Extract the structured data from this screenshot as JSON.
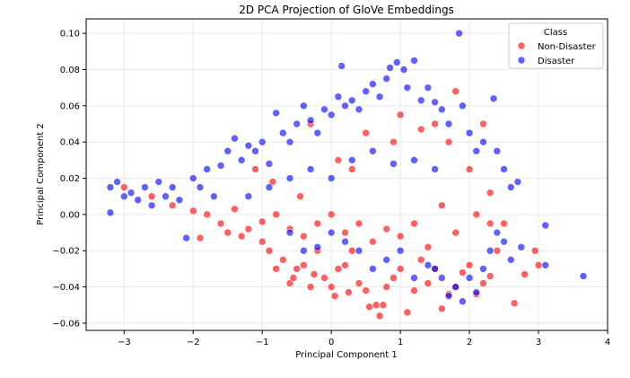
{
  "chart_data": {
    "type": "scatter",
    "title": "2D PCA Projection of GloVe Embeddings",
    "xlabel": "Principal Component 1",
    "ylabel": "Principal Component 2",
    "xlim": [
      -3.55,
      4.0
    ],
    "ylim": [
      -0.064,
      0.108
    ],
    "xticks": [
      -3,
      -2,
      -1,
      0,
      1,
      2,
      3,
      4
    ],
    "xtick_labels": [
      "−3",
      "−2",
      "−1",
      "0",
      "1",
      "2",
      "3",
      "4"
    ],
    "yticks": [
      -0.06,
      -0.04,
      -0.02,
      0.0,
      0.02,
      0.04,
      0.06,
      0.08,
      0.1
    ],
    "ytick_labels": [
      "−0.06",
      "−0.04",
      "−0.02",
      "0.00",
      "0.02",
      "0.04",
      "0.06",
      "0.08",
      "0.10"
    ],
    "grid": true,
    "legend": {
      "title": "Class",
      "placement": "top-right"
    },
    "series": [
      {
        "name": "Non-Disaster",
        "color": "#ff0000",
        "points": [
          [
            -3.0,
            0.015
          ],
          [
            -2.6,
            0.01
          ],
          [
            -2.3,
            0.005
          ],
          [
            -2.0,
            0.002
          ],
          [
            -1.9,
            -0.013
          ],
          [
            -1.8,
            0.0
          ],
          [
            -1.6,
            -0.005
          ],
          [
            -1.5,
            -0.01
          ],
          [
            -1.4,
            0.003
          ],
          [
            -1.3,
            -0.012
          ],
          [
            -1.2,
            -0.008
          ],
          [
            -1.1,
            0.025
          ],
          [
            -1.0,
            -0.015
          ],
          [
            -0.9,
            -0.02
          ],
          [
            -0.85,
            0.018
          ],
          [
            -0.8,
            -0.03
          ],
          [
            -0.7,
            -0.025
          ],
          [
            -0.6,
            -0.038
          ],
          [
            -0.55,
            -0.035
          ],
          [
            -0.5,
            -0.03
          ],
          [
            -0.45,
            0.01
          ],
          [
            -0.4,
            -0.028
          ],
          [
            -0.3,
            -0.04
          ],
          [
            -0.25,
            -0.033
          ],
          [
            -0.2,
            -0.02
          ],
          [
            -0.1,
            -0.035
          ],
          [
            0.0,
            -0.04
          ],
          [
            0.05,
            -0.045
          ],
          [
            0.1,
            -0.03
          ],
          [
            0.2,
            -0.028
          ],
          [
            0.25,
            -0.043
          ],
          [
            0.3,
            -0.02
          ],
          [
            0.4,
            -0.038
          ],
          [
            0.5,
            -0.042
          ],
          [
            0.55,
            -0.051
          ],
          [
            0.65,
            -0.05
          ],
          [
            0.7,
            -0.056
          ],
          [
            0.75,
            -0.05
          ],
          [
            0.8,
            -0.04
          ],
          [
            0.9,
            -0.035
          ],
          [
            1.0,
            -0.03
          ],
          [
            1.1,
            -0.054
          ],
          [
            1.2,
            -0.042
          ],
          [
            1.3,
            -0.025
          ],
          [
            1.4,
            -0.038
          ],
          [
            1.5,
            -0.03
          ],
          [
            1.6,
            -0.052
          ],
          [
            1.7,
            -0.044
          ],
          [
            1.8,
            -0.04
          ],
          [
            1.9,
            -0.032
          ],
          [
            2.0,
            -0.028
          ],
          [
            2.1,
            -0.044
          ],
          [
            2.2,
            -0.038
          ],
          [
            2.3,
            -0.034
          ],
          [
            2.4,
            -0.02
          ],
          [
            2.5,
            -0.005
          ],
          [
            2.65,
            -0.049
          ],
          [
            2.8,
            -0.033
          ],
          [
            2.95,
            -0.02
          ],
          [
            3.0,
            -0.028
          ],
          [
            0.0,
            0.0
          ],
          [
            0.2,
            -0.01
          ],
          [
            0.4,
            -0.005
          ],
          [
            0.6,
            -0.015
          ],
          [
            0.8,
            -0.008
          ],
          [
            1.0,
            -0.012
          ],
          [
            1.2,
            -0.005
          ],
          [
            1.4,
            -0.018
          ],
          [
            1.6,
            0.005
          ],
          [
            1.8,
            -0.01
          ],
          [
            -0.2,
            -0.005
          ],
          [
            -0.4,
            -0.012
          ],
          [
            -0.6,
            -0.008
          ],
          [
            -0.8,
            0.0
          ],
          [
            -1.0,
            -0.004
          ],
          [
            1.5,
            0.05
          ],
          [
            1.8,
            0.068
          ],
          [
            1.3,
            0.047
          ],
          [
            2.2,
            0.05
          ],
          [
            1.7,
            0.04
          ],
          [
            2.3,
            0.012
          ],
          [
            2.0,
            0.025
          ],
          [
            2.1,
            0.0
          ],
          [
            2.3,
            -0.005
          ],
          [
            0.1,
            0.03
          ],
          [
            0.5,
            0.045
          ],
          [
            0.9,
            0.04
          ],
          [
            1.0,
            0.055
          ],
          [
            -0.3,
            0.05
          ],
          [
            0.3,
            0.025
          ]
        ]
      },
      {
        "name": "Disaster",
        "color": "#0000ff",
        "points": [
          [
            -3.2,
            0.015
          ],
          [
            -3.2,
            0.001
          ],
          [
            -3.1,
            0.018
          ],
          [
            -3.0,
            0.01
          ],
          [
            -2.9,
            0.012
          ],
          [
            -2.8,
            0.008
          ],
          [
            -2.7,
            0.015
          ],
          [
            -2.6,
            0.005
          ],
          [
            -2.5,
            0.018
          ],
          [
            -2.4,
            0.01
          ],
          [
            -2.3,
            0.015
          ],
          [
            -2.2,
            0.008
          ],
          [
            -2.1,
            -0.013
          ],
          [
            -2.0,
            0.02
          ],
          [
            -1.9,
            0.015
          ],
          [
            -1.8,
            0.025
          ],
          [
            -1.7,
            0.01
          ],
          [
            -1.6,
            0.027
          ],
          [
            -1.5,
            0.035
          ],
          [
            -1.4,
            0.042
          ],
          [
            -1.3,
            0.03
          ],
          [
            -1.2,
            0.038
          ],
          [
            -1.1,
            0.035
          ],
          [
            -1.0,
            0.04
          ],
          [
            -0.9,
            0.028
          ],
          [
            -0.8,
            0.056
          ],
          [
            -0.7,
            0.045
          ],
          [
            -0.6,
            0.04
          ],
          [
            -0.5,
            0.05
          ],
          [
            -0.4,
            0.06
          ],
          [
            -0.3,
            0.052
          ],
          [
            -0.2,
            0.045
          ],
          [
            -0.1,
            0.058
          ],
          [
            0.0,
            0.055
          ],
          [
            0.1,
            0.065
          ],
          [
            0.15,
            0.082
          ],
          [
            0.2,
            0.06
          ],
          [
            0.3,
            0.063
          ],
          [
            0.4,
            0.058
          ],
          [
            0.5,
            0.068
          ],
          [
            0.6,
            0.072
          ],
          [
            0.7,
            0.065
          ],
          [
            0.8,
            0.075
          ],
          [
            0.85,
            0.081
          ],
          [
            0.95,
            0.084
          ],
          [
            1.05,
            0.08
          ],
          [
            1.1,
            0.07
          ],
          [
            1.2,
            0.085
          ],
          [
            1.3,
            0.063
          ],
          [
            1.4,
            0.07
          ],
          [
            1.5,
            0.062
          ],
          [
            1.6,
            0.058
          ],
          [
            1.7,
            0.05
          ],
          [
            1.85,
            0.1
          ],
          [
            1.9,
            0.06
          ],
          [
            2.0,
            0.045
          ],
          [
            2.1,
            0.035
          ],
          [
            2.2,
            0.04
          ],
          [
            2.35,
            0.064
          ],
          [
            2.4,
            0.035
          ],
          [
            2.5,
            0.025
          ],
          [
            2.6,
            0.015
          ],
          [
            2.7,
            0.018
          ],
          [
            2.75,
            -0.018
          ],
          [
            3.1,
            -0.006
          ],
          [
            3.1,
            -0.028
          ],
          [
            3.65,
            -0.034
          ],
          [
            2.6,
            -0.025
          ],
          [
            2.5,
            -0.015
          ],
          [
            2.4,
            -0.01
          ],
          [
            2.3,
            -0.02
          ],
          [
            2.2,
            -0.03
          ],
          [
            2.1,
            -0.043
          ],
          [
            2.0,
            -0.035
          ],
          [
            1.9,
            -0.048
          ],
          [
            1.8,
            -0.04
          ],
          [
            1.7,
            -0.045
          ],
          [
            1.6,
            -0.035
          ],
          [
            1.5,
            -0.03
          ],
          [
            1.4,
            -0.028
          ],
          [
            1.2,
            -0.035
          ],
          [
            1.0,
            -0.02
          ],
          [
            0.8,
            -0.025
          ],
          [
            0.6,
            -0.03
          ],
          [
            0.4,
            -0.02
          ],
          [
            0.2,
            -0.015
          ],
          [
            0.0,
            -0.01
          ],
          [
            -0.2,
            -0.018
          ],
          [
            -0.4,
            -0.02
          ],
          [
            -0.6,
            -0.01
          ],
          [
            0.0,
            0.02
          ],
          [
            0.3,
            0.03
          ],
          [
            0.6,
            0.035
          ],
          [
            0.9,
            0.028
          ],
          [
            1.2,
            0.03
          ],
          [
            1.5,
            0.025
          ],
          [
            -0.3,
            0.025
          ],
          [
            -0.6,
            0.02
          ],
          [
            -0.9,
            0.015
          ],
          [
            -1.2,
            0.01
          ]
        ]
      }
    ]
  }
}
